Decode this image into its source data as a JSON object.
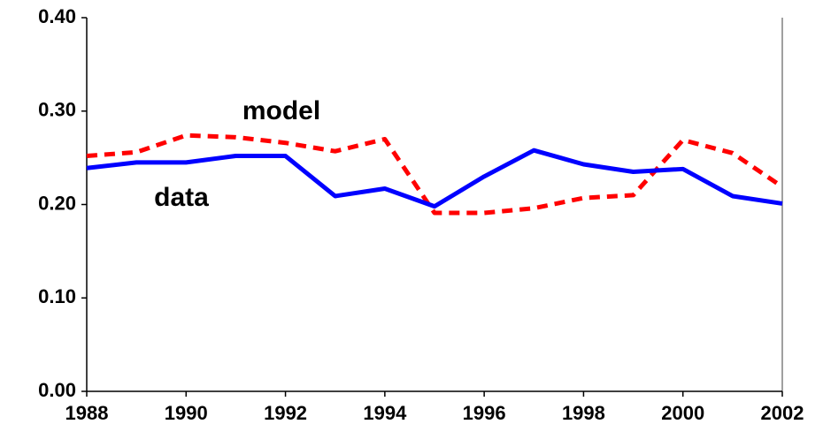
{
  "chart_data": {
    "type": "line",
    "x": [
      1988,
      1989,
      1990,
      1991,
      1992,
      1993,
      1994,
      1995,
      1996,
      1997,
      1998,
      1999,
      2000,
      2001,
      2002
    ],
    "series": [
      {
        "name": "data",
        "color": "#0000ff",
        "dashed": false,
        "values": [
          0.239,
          0.245,
          0.245,
          0.252,
          0.252,
          0.209,
          0.217,
          0.198,
          0.23,
          0.258,
          0.243,
          0.235,
          0.238,
          0.209,
          0.201
        ]
      },
      {
        "name": "model",
        "color": "#ff0000",
        "dashed": true,
        "values": [
          0.252,
          0.256,
          0.274,
          0.272,
          0.266,
          0.257,
          0.27,
          0.191,
          0.191,
          0.196,
          0.207,
          0.21,
          0.269,
          0.255,
          0.219
        ]
      }
    ],
    "xlim": [
      1988,
      2002
    ],
    "xticks": [
      1988,
      1990,
      1992,
      1994,
      1996,
      1998,
      2000,
      2002
    ],
    "ylim": [
      0,
      0.4
    ],
    "yticks": [
      {
        "value": 0,
        "label": "0.00"
      },
      {
        "value": 0.1,
        "label": "0.10"
      },
      {
        "value": 0.2,
        "label": "0.20"
      },
      {
        "value": 0.3,
        "label": "0.30"
      },
      {
        "value": 0.4,
        "label": "0.40"
      }
    ],
    "grid": false
  }
}
